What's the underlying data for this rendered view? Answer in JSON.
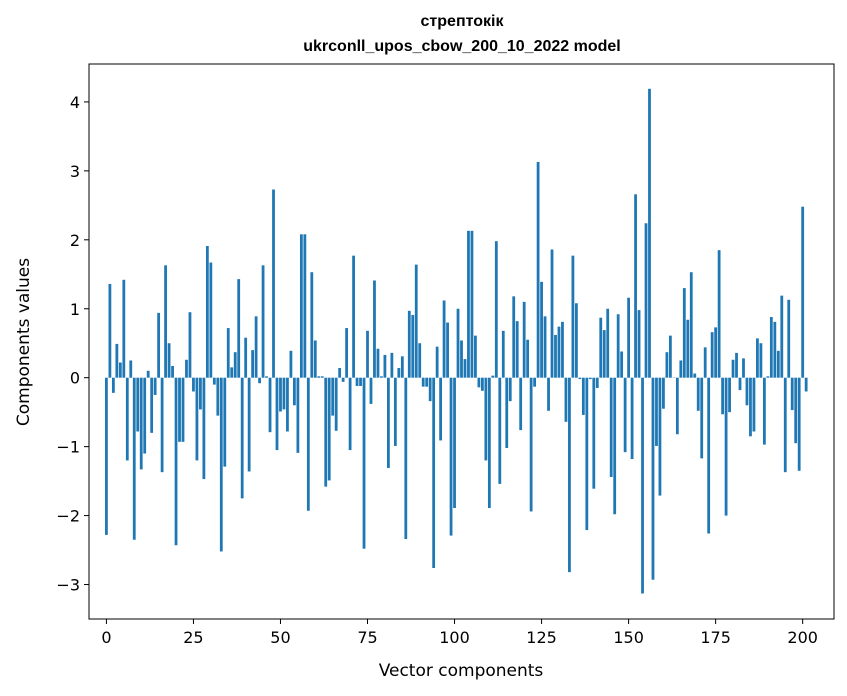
{
  "chart_data": {
    "type": "bar",
    "title": "стрептокік",
    "subtitle": "ukrconll_upos_cbow_200_10_2022 model",
    "xlabel": "Vector components",
    "ylabel": "Components values",
    "xlim": [
      -5,
      209
    ],
    "ylim": [
      -3.5,
      4.55
    ],
    "xticks": [
      0,
      25,
      50,
      75,
      100,
      125,
      150,
      175,
      200
    ],
    "yticks": [
      -3,
      -2,
      -1,
      0,
      1,
      2,
      3,
      4
    ],
    "grid": false,
    "bar_color": "#1f77b4",
    "values": [
      -2.28,
      1.36,
      -0.22,
      0.49,
      0.22,
      1.42,
      -1.2,
      0.25,
      -2.35,
      -0.78,
      -1.33,
      -1.1,
      0.1,
      -0.8,
      -0.25,
      0.94,
      -1.37,
      1.63,
      0.5,
      0.17,
      -2.43,
      -0.93,
      -0.93,
      0.26,
      0.95,
      -0.2,
      -1.2,
      -0.46,
      -1.47,
      1.91,
      1.67,
      -0.1,
      -0.55,
      -2.52,
      -1.29,
      0.72,
      0.15,
      0.37,
      1.43,
      -1.75,
      0.58,
      -1.36,
      0.4,
      0.89,
      -0.08,
      1.63,
      0.02,
      -0.79,
      2.73,
      -1.05,
      -0.49,
      -0.46,
      -0.78,
      0.39,
      -0.4,
      -1.09,
      2.08,
      2.08,
      -1.93,
      1.53,
      0.54,
      0.02,
      0.02,
      -1.58,
      -1.49,
      -0.55,
      -0.77,
      0.14,
      -0.06,
      0.72,
      -1.05,
      1.77,
      -0.12,
      -0.12,
      -2.48,
      0.68,
      -0.38,
      1.41,
      0.42,
      0.02,
      0.33,
      -1.31,
      0.36,
      -0.99,
      0.14,
      0.31,
      -2.34,
      0.97,
      0.91,
      1.64,
      0.5,
      -0.13,
      -0.13,
      -0.34,
      -2.76,
      0.45,
      -0.91,
      1.12,
      0.8,
      -2.29,
      -1.89,
      1.0,
      0.54,
      0.27,
      2.13,
      2.13,
      0.61,
      -0.14,
      -0.19,
      -1.2,
      -1.89,
      0.03,
      1.98,
      -1.54,
      0.68,
      -1.02,
      -0.34,
      1.18,
      0.82,
      -0.76,
      1.1,
      0.55,
      -1.94,
      -0.13,
      3.13,
      1.39,
      0.89,
      -0.48,
      1.86,
      0.62,
      0.74,
      0.81,
      -0.64,
      -2.82,
      1.77,
      1.08,
      -0.02,
      -0.54,
      -2.21,
      -0.02,
      -1.61,
      -0.15,
      0.87,
      0.69,
      1.0,
      -1.44,
      -1.98,
      0.92,
      0.38,
      -1.08,
      1.16,
      -1.18,
      2.66,
      0.98,
      -3.13,
      2.24,
      4.19,
      -2.93,
      -0.99,
      -1.71,
      -0.45,
      0.37,
      0.61,
      0.0,
      -0.82,
      0.25,
      1.3,
      0.84,
      1.53,
      0.06,
      -0.48,
      -1.17,
      0.44,
      -2.26,
      0.66,
      0.73,
      1.85,
      -0.53,
      -2.0,
      -0.5,
      0.26,
      0.36,
      -0.18,
      0.28,
      -0.4,
      -0.85,
      -0.78,
      0.57,
      0.5,
      -0.97,
      0.02,
      0.88,
      0.81,
      0.39,
      1.19,
      -1.37,
      1.13,
      -0.47,
      -0.95,
      -1.35,
      2.48,
      -0.2
    ]
  }
}
